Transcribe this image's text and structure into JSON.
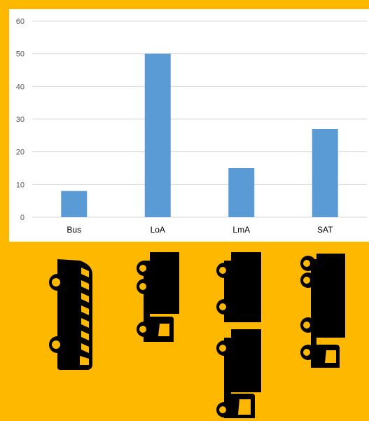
{
  "colors": {
    "background": "#FFB800",
    "panel": "#FFFFFF",
    "bar": "#5B9BD5",
    "gridline": "#D9D9D9",
    "vehicle": "#000000",
    "vehicle_detail": "#FFB800"
  },
  "chart_data": {
    "type": "bar",
    "categories": [
      "Bus",
      "LoA",
      "LmA",
      "SAT"
    ],
    "values": [
      8,
      50,
      15,
      27
    ],
    "title": "",
    "xlabel": "",
    "ylabel": "",
    "ylim": [
      0,
      60
    ],
    "yticks": [
      0,
      10,
      20,
      30,
      40,
      50,
      60
    ],
    "grid": true,
    "legend": "none"
  },
  "vehicles": [
    {
      "category": "Bus",
      "icon": "bus-icon"
    },
    {
      "category": "LoA",
      "icon": "truck-icon"
    },
    {
      "category": "LmA",
      "icon": "truck-with-trailer-icon"
    },
    {
      "category": "SAT",
      "icon": "articulated-truck-icon"
    }
  ]
}
